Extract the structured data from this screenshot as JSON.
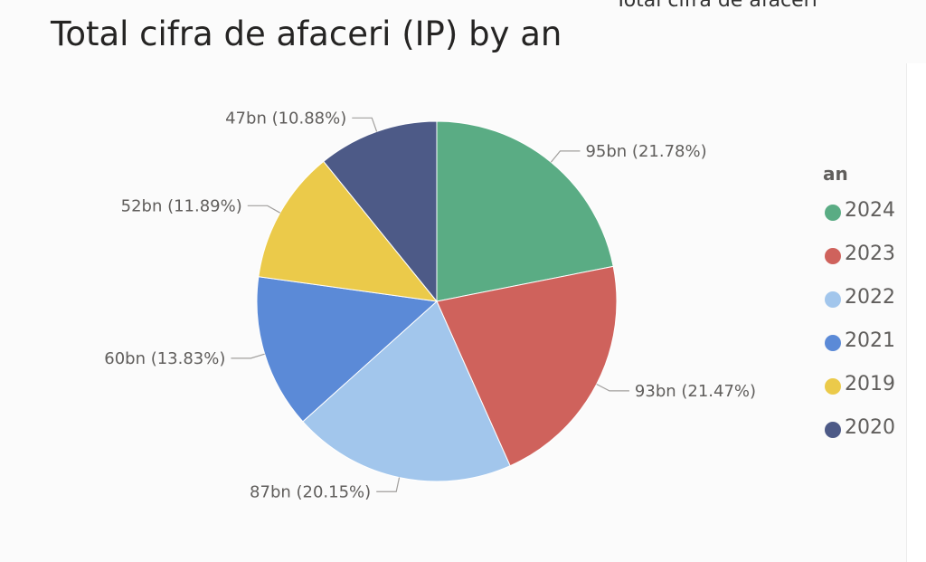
{
  "header": {
    "cut_label": "Total cifra de afaceri"
  },
  "chart_data": {
    "type": "pie",
    "title": "Total cifra de afaceri (IP) by an",
    "legend_title": "an",
    "legend_position": "right",
    "slices": [
      {
        "name": "2024",
        "value": 95,
        "label": "95bn (21.78%)",
        "color": "#5aac84"
      },
      {
        "name": "2023",
        "value": 93,
        "label": "93bn (21.47%)",
        "color": "#cf625c"
      },
      {
        "name": "2022",
        "value": 87,
        "label": "87bn (20.15%)",
        "color": "#a2c6ec"
      },
      {
        "name": "2021",
        "value": 60,
        "label": "60bn (13.83%)",
        "color": "#5b8ad7"
      },
      {
        "name": "2019",
        "value": 52,
        "label": "52bn (11.89%)",
        "color": "#ebca4a"
      },
      {
        "name": "2020",
        "value": 47,
        "label": "47bn (10.88%)",
        "color": "#4d5a87"
      }
    ]
  }
}
